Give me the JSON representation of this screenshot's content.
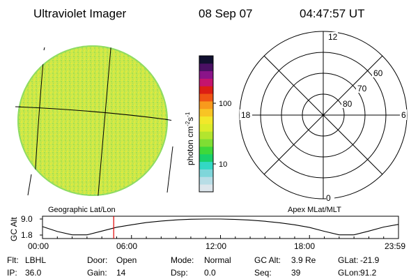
{
  "header": {
    "title": "Ultraviolet Imager",
    "date": "08 Sep 07",
    "time": "04:47:57 UT"
  },
  "colorbar": {
    "label": "photon cm",
    "label_sup1": "-2",
    "label_mid": "s",
    "label_sup2": "-1",
    "tick_labels": [
      "100",
      "10"
    ],
    "colors": [
      "#dde6ec",
      "#b8dde6",
      "#7fd6da",
      "#33d8c4",
      "#19d06a",
      "#3ed83a",
      "#7fde33",
      "#b3e52e",
      "#dcec2a",
      "#f2e82a",
      "#f8c424",
      "#f89a1c",
      "#ef5414",
      "#dc1e14",
      "#c4146e",
      "#8a1489",
      "#4a1064",
      "#111030"
    ]
  },
  "image_panel": {
    "label": "Geographic Lat/Lon",
    "fill_color": "#c8ea4a"
  },
  "polar_panel": {
    "label": "Apex MLat/MLT",
    "mlt_labels": [
      "12",
      "18",
      "6",
      "0"
    ],
    "mlat_labels": [
      "60",
      "70",
      "80"
    ]
  },
  "chart_data": {
    "type": "line",
    "title": "",
    "ylabel": "GC Alt",
    "y_ticks": [
      "9.0",
      "1.8"
    ],
    "ylim": [
      1.8,
      9.0
    ],
    "x_ticks": [
      "00:00",
      "06:00",
      "12:00",
      "18:00",
      "23:59"
    ],
    "xlim_hours": [
      0,
      24
    ],
    "series": [
      {
        "x_hours": [
          0,
          1,
          2,
          3,
          4,
          5,
          6,
          7,
          8,
          9,
          10,
          11,
          12,
          13,
          14,
          15,
          16,
          17,
          18,
          19,
          20,
          21,
          22,
          23,
          24
        ],
        "values": [
          5.6,
          3.4,
          1.9,
          1.9,
          3.6,
          5.3,
          6.4,
          7.4,
          8.1,
          8.6,
          8.9,
          9.0,
          9.0,
          8.8,
          8.5,
          8.0,
          7.3,
          6.4,
          5.2,
          3.5,
          1.9,
          1.9,
          3.6,
          5.4,
          6.6
        ]
      }
    ],
    "marker_time_hours": 4.8,
    "marker_color": "#e00000"
  },
  "footer": {
    "rows": [
      [
        {
          "label": "Flt:",
          "value": "LBHL"
        },
        {
          "label": "Door:",
          "value": "Open"
        },
        {
          "label": "Mode:",
          "value": "Normal"
        },
        {
          "label": "GC Alt:",
          "value": "3.9 Re"
        },
        {
          "label": "GLat:",
          "value": "-21.9"
        }
      ],
      [
        {
          "label": "IP:",
          "value": "36.0"
        },
        {
          "label": "Gain:",
          "value": "14"
        },
        {
          "label": "Dsp:",
          "value": "0.0"
        },
        {
          "label": "Seq:",
          "value": "39"
        },
        {
          "label": "GLon:",
          "value": "91.2"
        }
      ]
    ]
  }
}
